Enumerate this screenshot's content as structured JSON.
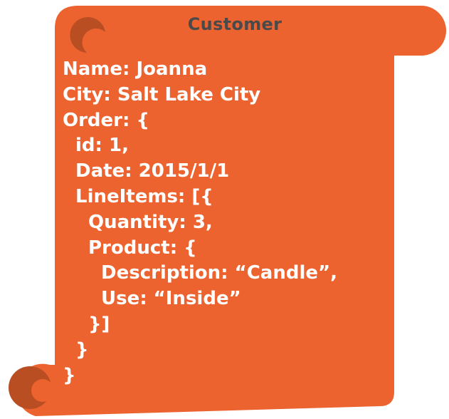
{
  "colors": {
    "scroll_fill": "#ec6330",
    "curl_shadow": "#b84e22",
    "title_text": "#4a4a4a",
    "code_text": "#ffffff"
  },
  "title": "Customer",
  "code_lines": [
    {
      "indent": 0,
      "text": "Name: Joanna"
    },
    {
      "indent": 0,
      "text": "City: Salt Lake City"
    },
    {
      "indent": 0,
      "text": "Order: {"
    },
    {
      "indent": 1,
      "text": "id: 1,"
    },
    {
      "indent": 1,
      "text": "Date: 2015/1/1"
    },
    {
      "indent": 1,
      "text": "LineItems: [{"
    },
    {
      "indent": 2,
      "text": "Quantity: 3,"
    },
    {
      "indent": 2,
      "text": "Product: {"
    },
    {
      "indent": 3,
      "text": "Description: “Candle”,"
    },
    {
      "indent": 3,
      "text": "Use: “Inside”"
    },
    {
      "indent": 2,
      "text": "}]"
    },
    {
      "indent": 1,
      "text": "}"
    },
    {
      "indent": 0,
      "text": "}"
    }
  ]
}
